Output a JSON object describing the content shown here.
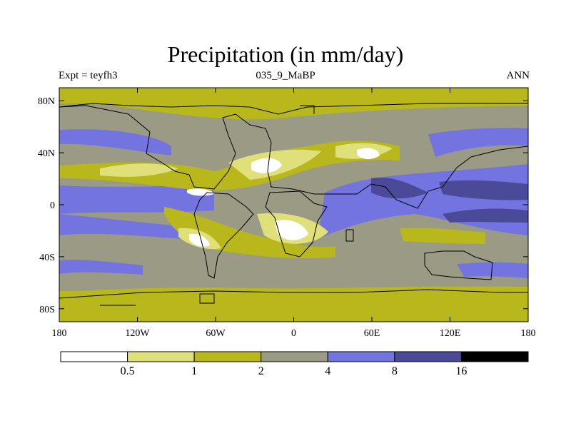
{
  "title": "Precipitation (in mm/day)",
  "subtitle_left": "Expt = teyfh3",
  "subtitle_center": "035_9_MaBP",
  "subtitle_right": "ANN",
  "chart_data": {
    "type": "heatmap",
    "title": "Precipitation (in mm/day)",
    "x_axis": {
      "range": [
        -180,
        180
      ],
      "ticks": [
        -180,
        -120,
        -60,
        0,
        60,
        120,
        180
      ],
      "tick_labels": [
        "180",
        "120W",
        "60W",
        "0",
        "60E",
        "120E",
        "180"
      ]
    },
    "y_axis": {
      "range": [
        -90,
        90
      ],
      "ticks": [
        80,
        40,
        0,
        -40,
        -80
      ],
      "tick_labels": [
        "80N",
        "40N",
        "0",
        "40S",
        "80S"
      ]
    },
    "colorbar": {
      "levels": [
        "0.5",
        "1",
        "2",
        "4",
        "8",
        "16"
      ],
      "colors": [
        "#ffffff",
        "#e0e07a",
        "#b8b81c",
        "#9a9a85",
        "#7474e0",
        "#4a4a98",
        "#000000"
      ]
    }
  }
}
